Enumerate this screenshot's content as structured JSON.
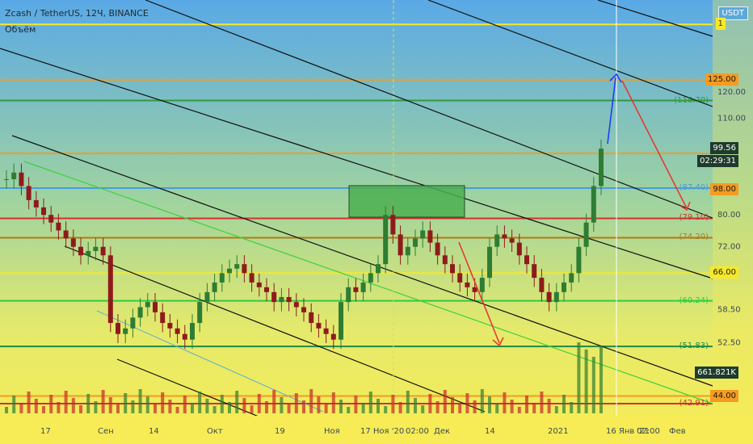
{
  "header": {
    "symbol_line": "Zcash / TetherUS, 12Ч, BINANCE",
    "volume_label": "Объём",
    "currency_badge": "USDT"
  },
  "price_axis": {
    "ticks": [
      "120.00",
      "110.00",
      "80.00",
      "72.00",
      "58.50",
      "52.50"
    ],
    "tags": [
      {
        "text": "1",
        "bg": "#f7e928",
        "fg": "#333",
        "price": 150
      },
      {
        "text": "125.00",
        "bg": "#f59b22",
        "fg": "#1a1a1a",
        "price": 125
      },
      {
        "text": "(116.70)",
        "bg": "transparent",
        "fg": "#2e9a3c",
        "price": 116.7
      },
      {
        "text": "99.56",
        "bg": "#1e3b2c",
        "fg": "#ffffff",
        "price": 99.56
      },
      {
        "text": "02:29:31",
        "bg": "#1e3b2c",
        "fg": "#ffffff",
        "price": 95.5
      },
      {
        "text": "(87.40)",
        "bg": "transparent",
        "fg": "#4a9dd6",
        "price": 87.4
      },
      {
        "text": "98.00",
        "bg": "#f59b22",
        "fg": "#1a1a1a",
        "price": 87.0
      },
      {
        "text": "(79.10)",
        "bg": "transparent",
        "fg": "#c0392b",
        "price": 79.1
      },
      {
        "text": "(74.20)",
        "bg": "transparent",
        "fg": "#b07a1c",
        "price": 74.2
      },
      {
        "text": "66.00",
        "bg": "#f7e928",
        "fg": "#1a1a1a",
        "price": 66
      },
      {
        "text": "(60.24)",
        "bg": "transparent",
        "fg": "#2ecc40",
        "price": 60.24
      },
      {
        "text": "(51.83)",
        "bg": "transparent",
        "fg": "#1c8a4a",
        "price": 51.83
      },
      {
        "text": "661.821K",
        "bg": "#1e3b2c",
        "fg": "#ffffff",
        "price": 47.5
      },
      {
        "text": "44.00",
        "bg": "#f59b22",
        "fg": "#1a1a1a",
        "price": 44
      },
      {
        "text": "(42.91)",
        "bg": "transparent",
        "fg": "#c0392b",
        "price": 42.91
      }
    ]
  },
  "time_axis": {
    "labels": [
      "17",
      "Сен",
      "14",
      "Окт",
      "19",
      "Ноя",
      "17 Ноя '20",
      "02:00",
      "Дек",
      "14",
      "2021",
      "16 Янв '21",
      "02:00",
      "Фев"
    ]
  },
  "chart_data": {
    "type": "candlestick",
    "symbol": "Zcash / TetherUS",
    "interval": "12Ч",
    "exchange": "BINANCE",
    "horizontal_levels": [
      {
        "price": 150,
        "color": "#f7e928"
      },
      {
        "price": 125,
        "color": "#f59b22"
      },
      {
        "price": 116.7,
        "color": "#2e9a3c"
      },
      {
        "price": 98,
        "color": "#f59b22"
      },
      {
        "price": 87.4,
        "color": "#4a9dd6"
      },
      {
        "price": 79.1,
        "color": "#d63031"
      },
      {
        "price": 74.2,
        "color": "#b07a1c"
      },
      {
        "price": 66,
        "color": "#f7e928"
      },
      {
        "price": 60.24,
        "color": "#2ecc40"
      },
      {
        "price": 51.83,
        "color": "#1c8a4a"
      },
      {
        "price": 44,
        "color": "#f59b22"
      },
      {
        "price": 42.91,
        "color": "#d63031"
      }
    ],
    "last_price": 99.56,
    "last_volume": "661.821K",
    "countdown": "02:29:31",
    "price_range": [
      42,
      155
    ],
    "series_close": [
      90,
      92,
      88,
      84,
      82,
      80,
      78,
      76,
      74,
      72,
      70,
      71,
      72,
      70,
      56,
      54,
      55,
      57,
      59,
      60,
      58,
      56,
      55,
      54,
      53,
      56,
      60,
      62,
      64,
      66,
      67,
      68,
      66,
      64,
      63,
      62,
      60,
      61,
      60,
      59,
      58,
      56,
      55,
      54,
      53,
      60,
      63,
      62,
      64,
      66,
      68,
      80,
      75,
      70,
      72,
      74,
      76,
      73,
      70,
      68,
      66,
      64,
      63,
      62,
      65,
      72,
      75,
      74,
      73,
      70,
      68,
      65,
      62,
      60,
      62,
      64,
      66,
      72,
      78,
      88,
      99.56
    ]
  }
}
